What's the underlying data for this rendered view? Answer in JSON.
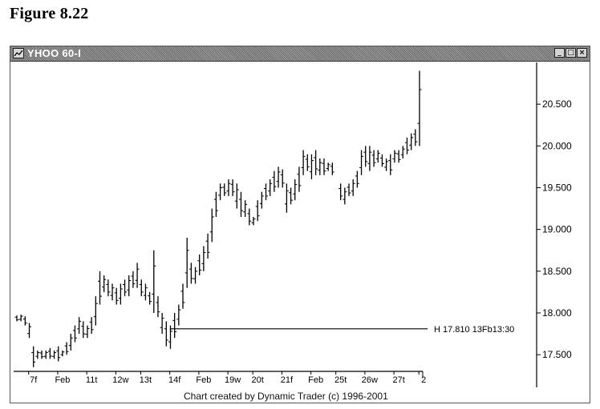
{
  "figure_title": "Figure 8.22",
  "window": {
    "title": "YHOO 60-I",
    "buttons": {
      "minimize": "_",
      "maximize": "□",
      "close": "×"
    }
  },
  "footer": "Chart created by Dynamic Trader (c) 1996-2001",
  "chart_data": {
    "type": "bar",
    "subtype": "ohlc-bars",
    "symbol": "YHOO",
    "interval": "60-minute",
    "ylim": [
      17.3,
      21.0
    ],
    "y_ticks": [
      "20.500",
      "20.000",
      "19.500",
      "19.000",
      "18.500",
      "18.000",
      "17.500"
    ],
    "y_tick_values": [
      20.5,
      20.0,
      19.5,
      19.0,
      18.5,
      18.0,
      17.5
    ],
    "x_tick_labels": [
      "7f",
      "Feb",
      "11t",
      "12w",
      "13t",
      "14f",
      "Feb",
      "19w",
      "20t",
      "21f",
      "Feb",
      "25t",
      "26w",
      "27t",
      "2"
    ],
    "x_tick_index": [
      4,
      11,
      18,
      25,
      31,
      38,
      45,
      52,
      58,
      65,
      72,
      78,
      85,
      92,
      98
    ],
    "bars": [
      {
        "h": 17.97,
        "l": 17.9
      },
      {
        "h": 17.98,
        "l": 17.9
      },
      {
        "h": 17.96,
        "l": 17.85
      },
      {
        "h": 17.88,
        "l": 17.7
      },
      {
        "h": 17.6,
        "l": 17.35
      },
      {
        "h": 17.55,
        "l": 17.45
      },
      {
        "h": 17.55,
        "l": 17.45
      },
      {
        "h": 17.55,
        "l": 17.45
      },
      {
        "h": 17.58,
        "l": 17.45
      },
      {
        "h": 17.55,
        "l": 17.45
      },
      {
        "h": 17.6,
        "l": 17.42
      },
      {
        "h": 17.55,
        "l": 17.48
      },
      {
        "h": 17.65,
        "l": 17.5
      },
      {
        "h": 17.75,
        "l": 17.55
      },
      {
        "h": 17.85,
        "l": 17.65
      },
      {
        "h": 17.95,
        "l": 17.75
      },
      {
        "h": 17.9,
        "l": 17.7
      },
      {
        "h": 17.85,
        "l": 17.7
      },
      {
        "h": 17.95,
        "l": 17.75
      },
      {
        "h": 18.2,
        "l": 17.85
      },
      {
        "h": 18.5,
        "l": 18.1
      },
      {
        "h": 18.45,
        "l": 18.25
      },
      {
        "h": 18.4,
        "l": 18.2
      },
      {
        "h": 18.35,
        "l": 18.15
      },
      {
        "h": 18.3,
        "l": 18.1
      },
      {
        "h": 18.35,
        "l": 18.1
      },
      {
        "h": 18.4,
        "l": 18.2
      },
      {
        "h": 18.45,
        "l": 18.2
      },
      {
        "h": 18.5,
        "l": 18.3
      },
      {
        "h": 18.6,
        "l": 18.3
      },
      {
        "h": 18.4,
        "l": 18.2
      },
      {
        "h": 18.35,
        "l": 18.15
      },
      {
        "h": 18.25,
        "l": 18.1
      },
      {
        "h": 18.75,
        "l": 18.0
      },
      {
        "h": 18.2,
        "l": 17.95
      },
      {
        "h": 18.0,
        "l": 17.75
      },
      {
        "h": 17.9,
        "l": 17.6
      },
      {
        "h": 17.85,
        "l": 17.57
      },
      {
        "h": 18.0,
        "l": 17.7
      },
      {
        "h": 18.1,
        "l": 17.85
      },
      {
        "h": 18.35,
        "l": 18.05
      },
      {
        "h": 18.9,
        "l": 18.3
      },
      {
        "h": 18.6,
        "l": 18.35
      },
      {
        "h": 18.55,
        "l": 18.35
      },
      {
        "h": 18.7,
        "l": 18.45
      },
      {
        "h": 18.8,
        "l": 18.5
      },
      {
        "h": 18.95,
        "l": 18.65
      },
      {
        "h": 19.25,
        "l": 18.85
      },
      {
        "h": 19.45,
        "l": 19.15
      },
      {
        "h": 19.55,
        "l": 19.35
      },
      {
        "h": 19.55,
        "l": 19.4
      },
      {
        "h": 19.6,
        "l": 19.4
      },
      {
        "h": 19.6,
        "l": 19.4
      },
      {
        "h": 19.55,
        "l": 19.25
      },
      {
        "h": 19.45,
        "l": 19.15
      },
      {
        "h": 19.35,
        "l": 19.15
      },
      {
        "h": 19.25,
        "l": 19.05
      },
      {
        "h": 19.15,
        "l": 19.05
      },
      {
        "h": 19.35,
        "l": 19.1
      },
      {
        "h": 19.45,
        "l": 19.25
      },
      {
        "h": 19.55,
        "l": 19.35
      },
      {
        "h": 19.6,
        "l": 19.4
      },
      {
        "h": 19.7,
        "l": 19.45
      },
      {
        "h": 19.75,
        "l": 19.5
      },
      {
        "h": 19.72,
        "l": 19.5
      },
      {
        "h": 19.55,
        "l": 19.2
      },
      {
        "h": 19.5,
        "l": 19.3
      },
      {
        "h": 19.6,
        "l": 19.35
      },
      {
        "h": 19.75,
        "l": 19.45
      },
      {
        "h": 19.95,
        "l": 19.65
      },
      {
        "h": 19.9,
        "l": 19.7
      },
      {
        "h": 19.9,
        "l": 19.6
      },
      {
        "h": 19.95,
        "l": 19.65
      },
      {
        "h": 19.85,
        "l": 19.65
      },
      {
        "h": 19.85,
        "l": 19.65
      },
      {
        "h": 19.8,
        "l": 19.7
      },
      {
        "h": 19.8,
        "l": 19.65
      },
      {
        "h": null,
        "l": null
      },
      {
        "h": 19.55,
        "l": 19.35
      },
      {
        "h": 19.5,
        "l": 19.3
      },
      {
        "h": 19.55,
        "l": 19.4
      },
      {
        "h": 19.6,
        "l": 19.4
      },
      {
        "h": 19.7,
        "l": 19.5
      },
      {
        "h": 19.95,
        "l": 19.65
      },
      {
        "h": 20.0,
        "l": 19.75
      },
      {
        "h": 20.0,
        "l": 19.7
      },
      {
        "h": 19.95,
        "l": 19.75
      },
      {
        "h": 19.95,
        "l": 19.8
      },
      {
        "h": 19.9,
        "l": 19.75
      },
      {
        "h": 19.85,
        "l": 19.7
      },
      {
        "h": 19.9,
        "l": 19.65
      },
      {
        "h": 19.95,
        "l": 19.8
      },
      {
        "h": 19.95,
        "l": 19.8
      },
      {
        "h": 20.0,
        "l": 19.85
      },
      {
        "h": 20.1,
        "l": 19.9
      },
      {
        "h": 20.15,
        "l": 19.95
      },
      {
        "h": 20.2,
        "l": 20.0
      },
      {
        "h": 20.9,
        "l": 20.0
      }
    ],
    "annotation": {
      "label": "H 17.810 13Fb13:30",
      "value": 17.81,
      "start_index": 38
    },
    "legend": "none",
    "grid": false
  }
}
